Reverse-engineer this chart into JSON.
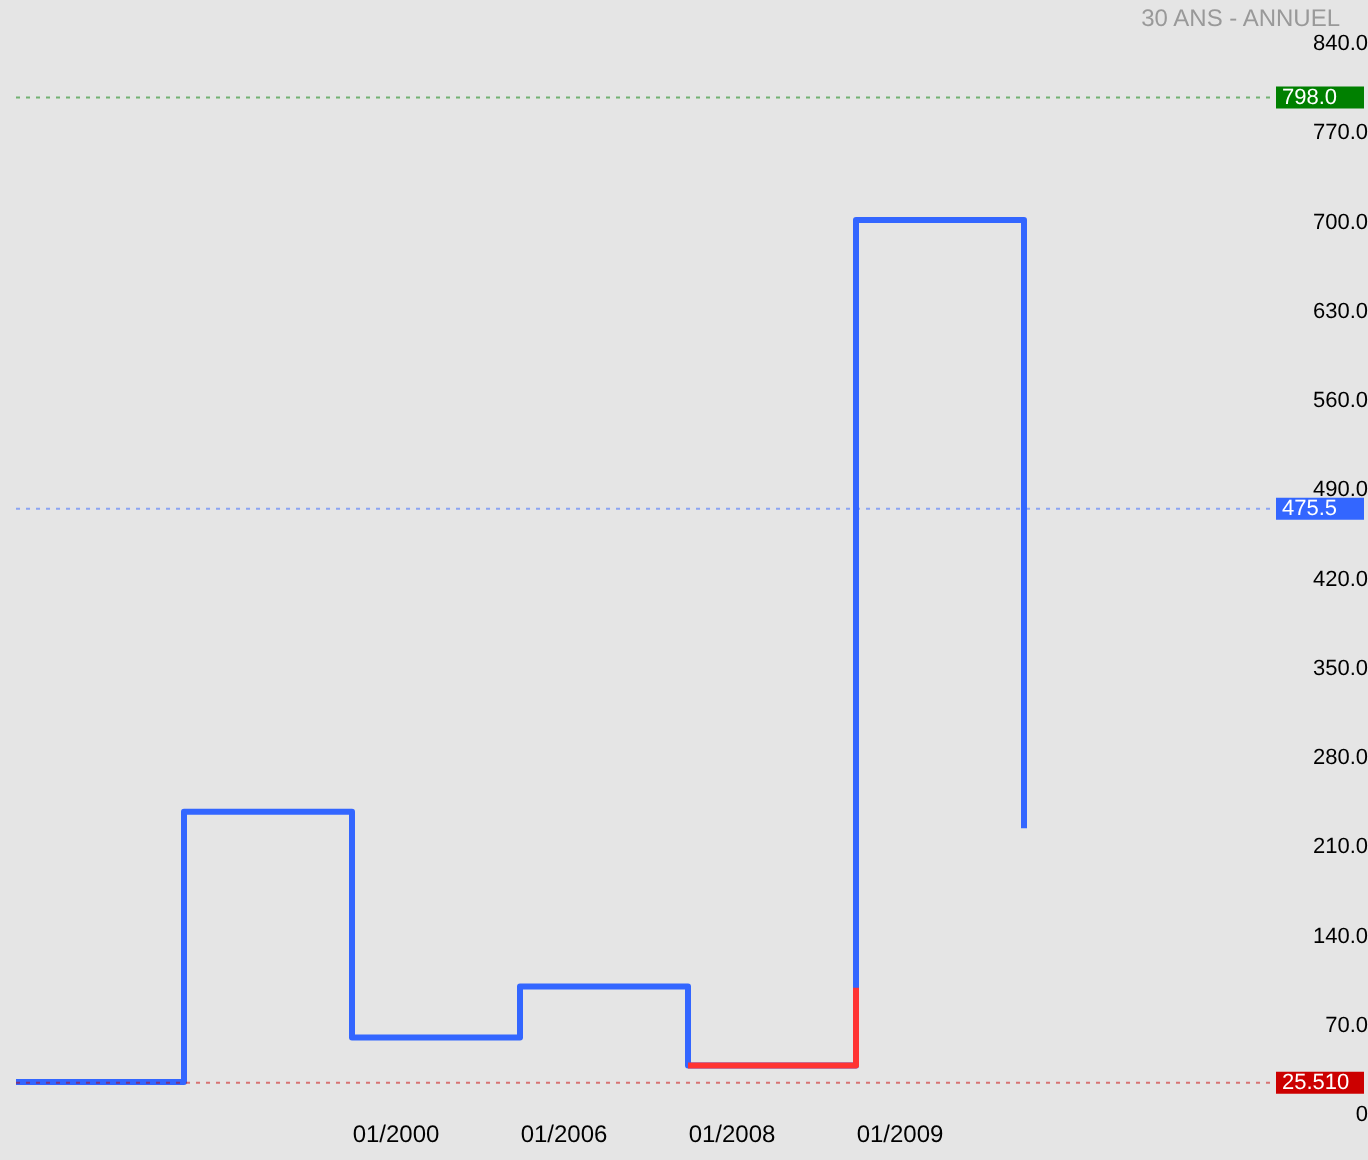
{
  "chart_data": {
    "type": "step",
    "subtitle": "30 ANS - ANNUEL",
    "categories": [
      null,
      null,
      "01/2000",
      "01/2006",
      "01/2008",
      "01/2009",
      null
    ],
    "series": [
      {
        "color": "#3366ff",
        "values": [
          26,
          238,
          61,
          101,
          39,
          702,
          225
        ]
      },
      {
        "color": "#ff3333",
        "values": [
          null,
          null,
          null,
          null,
          39,
          100,
          null
        ]
      }
    ],
    "ylim": [
      0,
      840
    ],
    "yticks": [
      {
        "value": 0,
        "label": "0"
      },
      {
        "value": 70,
        "label": "70.0"
      },
      {
        "value": 140,
        "label": "140.0"
      },
      {
        "value": 210,
        "label": "210.0"
      },
      {
        "value": 280,
        "label": "280.0"
      },
      {
        "value": 350,
        "label": "350.0"
      },
      {
        "value": 420,
        "label": "420.0"
      },
      {
        "value": 490,
        "label": "490.0"
      },
      {
        "value": 560,
        "label": "560.0"
      },
      {
        "value": 630,
        "label": "630.0"
      },
      {
        "value": 700,
        "label": "700.0"
      },
      {
        "value": 770,
        "label": "770.0"
      },
      {
        "value": 840,
        "label": "840.0"
      }
    ],
    "ref_lines": [
      {
        "axis": "y",
        "value": 798,
        "label": "798.0",
        "color": "#008000",
        "line_style": "dotted"
      },
      {
        "axis": "y",
        "value": 475.5,
        "label": "475.5",
        "color": "#3366ff",
        "line_style": "dotted"
      },
      {
        "axis": "y",
        "value": 25.51,
        "label": "25.510",
        "color": "#cc0000",
        "line_style": "dotted"
      }
    ],
    "grid": false,
    "legend": false,
    "marker": "none",
    "line_style": "solid"
  }
}
